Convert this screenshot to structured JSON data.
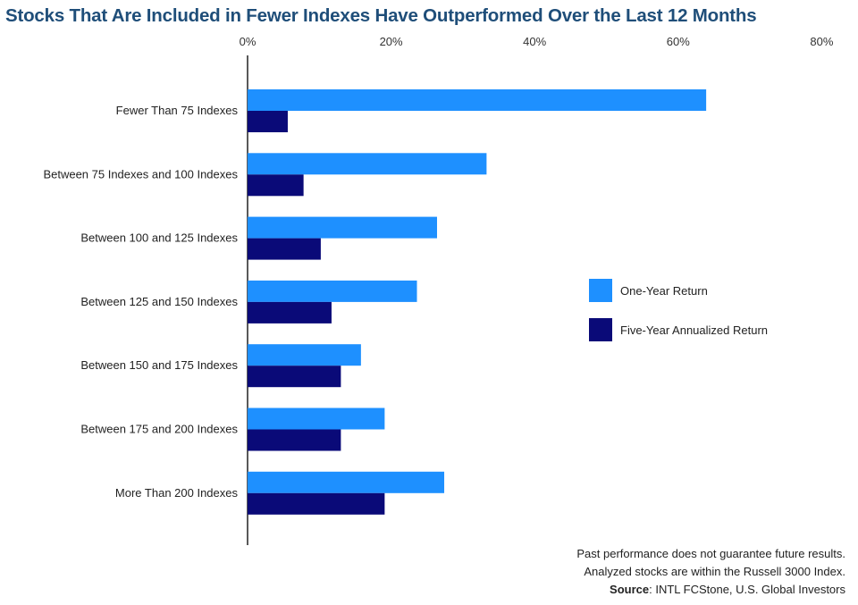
{
  "chart_data": {
    "type": "bar",
    "orientation": "horizontal",
    "title": "Stocks That Are Included in Fewer Indexes Have Outperformed Over the Last 12 Months",
    "categories": [
      "Fewer Than 75 Indexes",
      "Between 75 Indexes and 100 Indexes",
      "Between 100 and 125 Indexes",
      "Between 125 and 150 Indexes",
      "Between 150 and 175 Indexes",
      "Between 175 and 200 Indexes",
      "More Than 200 Indexes"
    ],
    "series": [
      {
        "name": "One-Year Return",
        "color": "#1e90ff",
        "values": [
          63.9,
          33.3,
          26.4,
          23.6,
          15.8,
          19.1,
          27.4
        ]
      },
      {
        "name": "Five-Year Annualized Return",
        "color": "#0a0a78",
        "values": [
          5.6,
          7.8,
          10.2,
          11.7,
          13.0,
          13.0,
          19.1
        ]
      }
    ],
    "xlim": [
      0,
      80
    ],
    "xticks": [
      "0%",
      "20%",
      "40%",
      "60%",
      "80%"
    ],
    "xtick_values": [
      0,
      20,
      40,
      60,
      80
    ],
    "legend": "right",
    "grid": false
  },
  "footer": {
    "line1": "Past performance does not guarantee future results.",
    "line2": "Analyzed stocks are within the Russell 3000 Index.",
    "source_label": "Source",
    "source_text": ": INTL FCStone, U.S. Global Investors"
  }
}
